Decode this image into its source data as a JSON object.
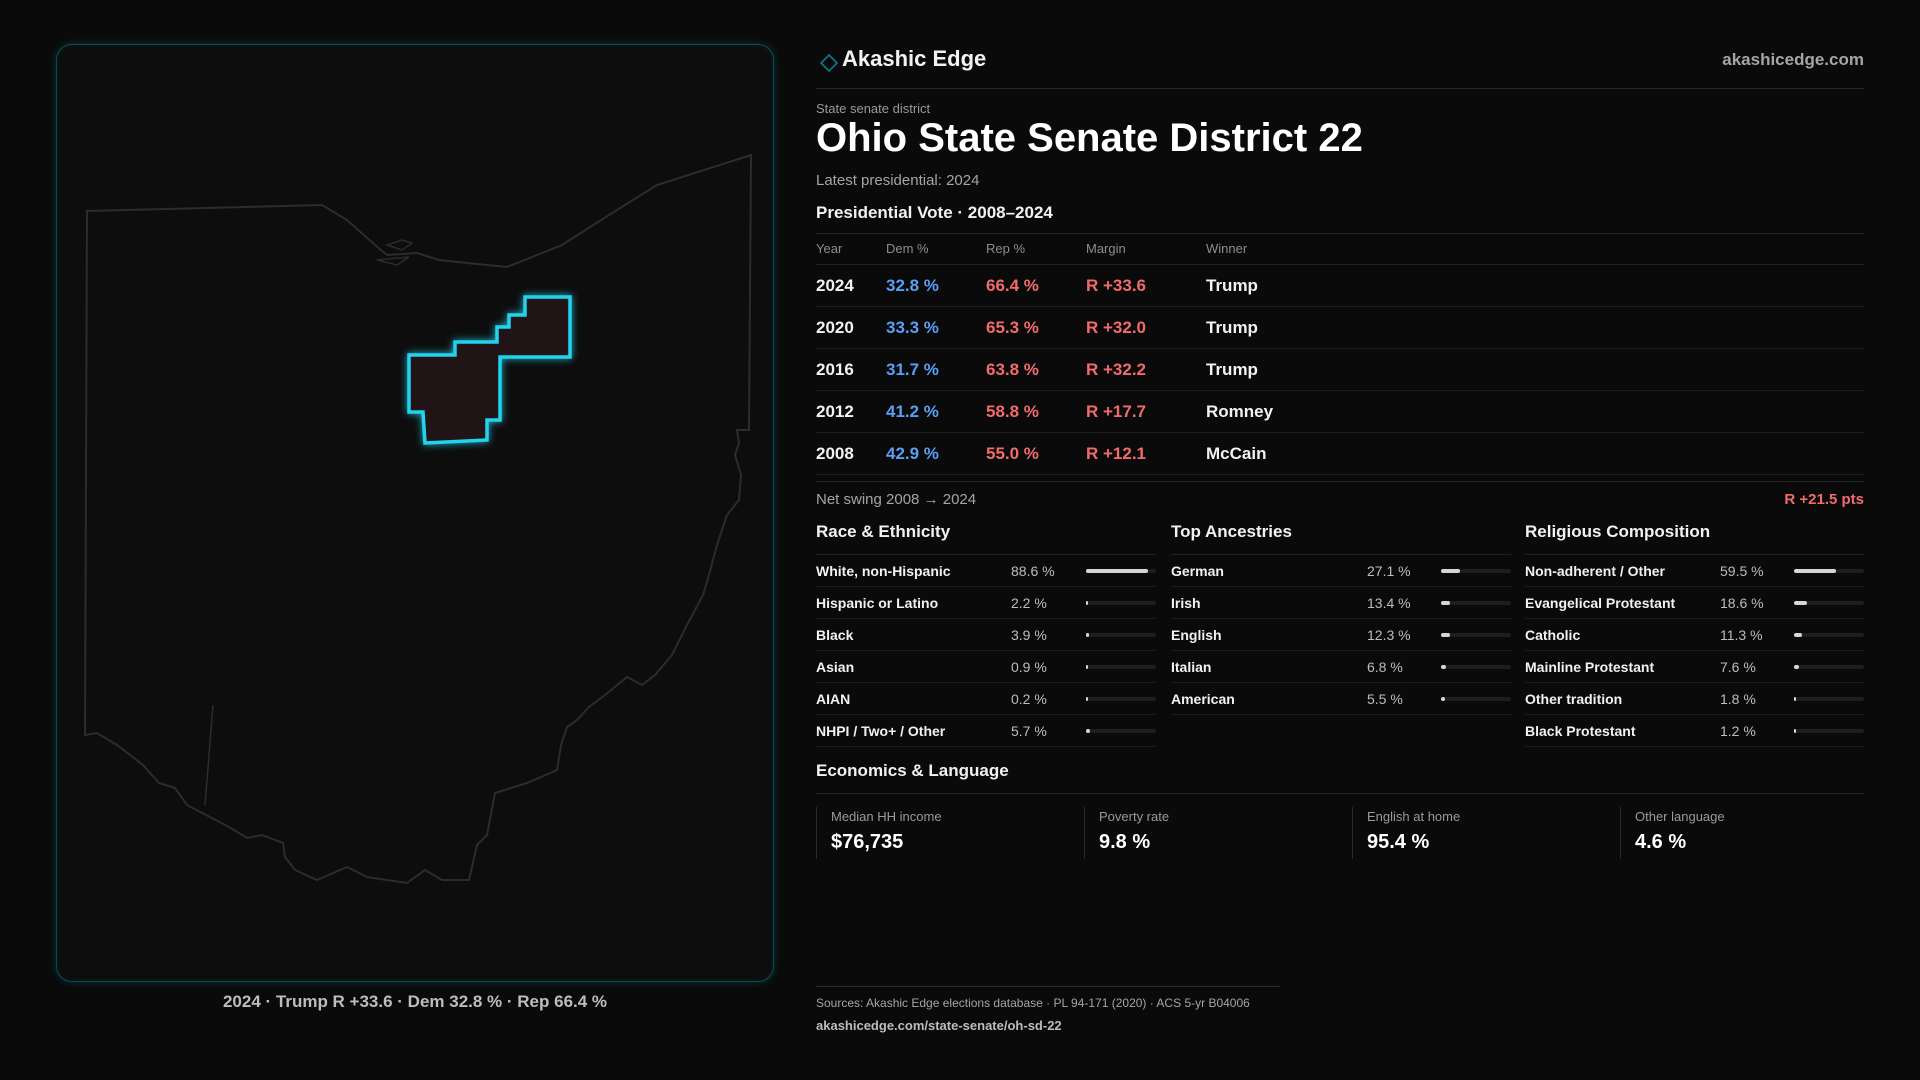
{
  "brand": {
    "name": "Akashic Edge",
    "url": "akashicedge.com",
    "logo_icon": "diamond-icon"
  },
  "kicker": "State senate district",
  "title": "Ohio State Senate District 22",
  "subtitle": "Latest presidential: 2024",
  "presidential": {
    "heading": "Presidential Vote · 2008–2024",
    "columns": {
      "year": "Year",
      "dem": "Dem %",
      "rep": "Rep %",
      "margin": "Margin",
      "winner": "Winner"
    },
    "rows": [
      {
        "year": "2024",
        "dem": "32.8 %",
        "rep": "66.4 %",
        "margin": "R +33.6",
        "winner": "Trump"
      },
      {
        "year": "2020",
        "dem": "33.3 %",
        "rep": "65.3 %",
        "margin": "R +32.0",
        "winner": "Trump"
      },
      {
        "year": "2016",
        "dem": "31.7 %",
        "rep": "63.8 %",
        "margin": "R +32.2",
        "winner": "Trump"
      },
      {
        "year": "2012",
        "dem": "41.2 %",
        "rep": "58.8 %",
        "margin": "R +17.7",
        "winner": "Romney"
      },
      {
        "year": "2008",
        "dem": "42.9 %",
        "rep": "55.0 %",
        "margin": "R +12.1",
        "winner": "McCain"
      }
    ]
  },
  "swing": {
    "label": "Net swing 2008 → 2024",
    "value": "R +21.5 pts"
  },
  "race": {
    "heading": "Race & Ethnicity",
    "items": [
      {
        "label": "White, non-Hispanic",
        "value": "88.6 %",
        "fraction": 0.886
      },
      {
        "label": "Hispanic or Latino",
        "value": "2.2 %",
        "fraction": 0.022
      },
      {
        "label": "Black",
        "value": "3.9 %",
        "fraction": 0.039
      },
      {
        "label": "Asian",
        "value": "0.9 %",
        "fraction": 0.009
      },
      {
        "label": "AIAN",
        "value": "0.2 %",
        "fraction": 0.002
      },
      {
        "label": "NHPI / Two+ / Other",
        "value": "5.7 %",
        "fraction": 0.057
      }
    ]
  },
  "ancestry": {
    "heading": "Top Ancestries",
    "items": [
      {
        "label": "German",
        "value": "27.1 %",
        "fraction": 0.271
      },
      {
        "label": "Irish",
        "value": "13.4 %",
        "fraction": 0.134
      },
      {
        "label": "English",
        "value": "12.3 %",
        "fraction": 0.123
      },
      {
        "label": "Italian",
        "value": "6.8 %",
        "fraction": 0.068
      },
      {
        "label": "American",
        "value": "5.5 %",
        "fraction": 0.055
      }
    ]
  },
  "religion": {
    "heading": "Religious Composition",
    "items": [
      {
        "label": "Non-adherent / Other",
        "value": "59.5 %",
        "fraction": 0.595
      },
      {
        "label": "Evangelical Protestant",
        "value": "18.6 %",
        "fraction": 0.186
      },
      {
        "label": "Catholic",
        "value": "11.3 %",
        "fraction": 0.113
      },
      {
        "label": "Mainline Protestant",
        "value": "7.6 %",
        "fraction": 0.076
      },
      {
        "label": "Other tradition",
        "value": "1.8 %",
        "fraction": 0.018
      },
      {
        "label": "Black Protestant",
        "value": "1.2 %",
        "fraction": 0.012
      }
    ]
  },
  "economics": {
    "heading": "Economics & Language",
    "cards": [
      {
        "label": "Median HH income",
        "value": "$76,735"
      },
      {
        "label": "Poverty rate",
        "value": "9.8 %"
      },
      {
        "label": "English at home",
        "value": "95.4 %"
      },
      {
        "label": "Other language",
        "value": "4.6 %"
      }
    ]
  },
  "map_caption": "2024 · Trump R +33.6 · Dem 32.8 % · Rep 66.4 %",
  "sources": {
    "text": "Sources: Akashic Edge elections database · PL 94-171 (2020) · ACS 5-yr B04006",
    "url": "akashicedge.com/state-senate/oh-sd-22"
  },
  "colors": {
    "dem": "#5b9ef5",
    "rep": "#f26b6b",
    "district_outline": "#22d3ee",
    "district_fill": "#201416",
    "bar_fill": "#d6d6d9"
  }
}
